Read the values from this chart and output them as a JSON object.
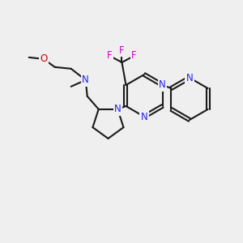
{
  "background": "#efefef",
  "bond_color": "#1a1a1a",
  "N_color": "#2222ee",
  "O_color": "#cc0000",
  "F_color": "#cc00cc",
  "figsize": [
    3.0,
    3.0
  ],
  "dpi": 100,
  "lw": 1.5,
  "fs": 8.5,
  "xlim": [
    0,
    300
  ],
  "ylim": [
    0,
    300
  ]
}
